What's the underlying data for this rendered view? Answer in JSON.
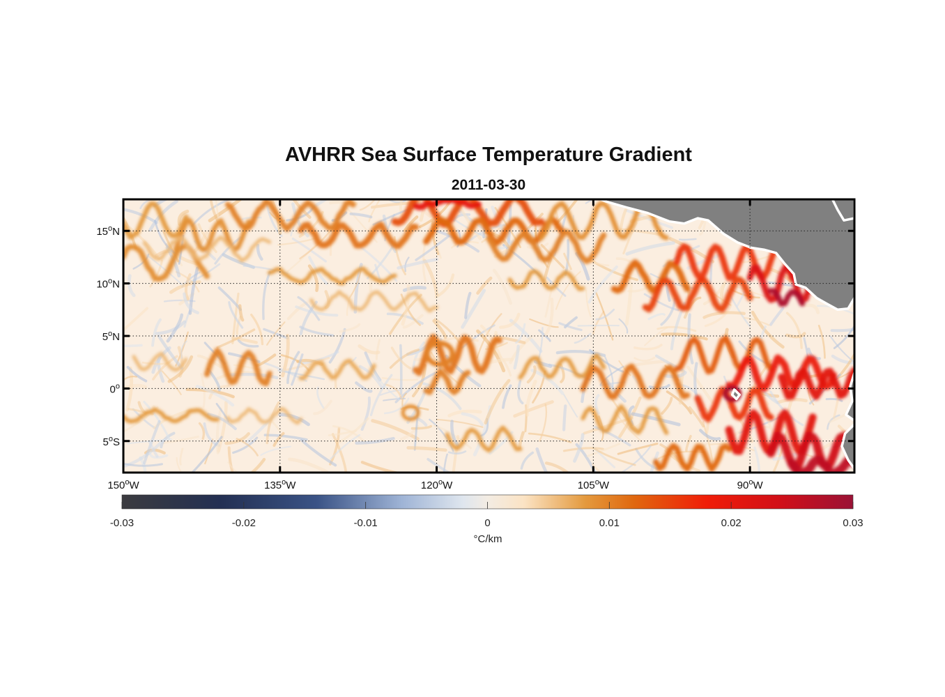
{
  "title": "AVHRR Sea Surface Temperature Gradient",
  "subtitle": "2011-03-30",
  "map": {
    "lon_range": [
      -150,
      -80
    ],
    "lat_range": [
      -8,
      18
    ],
    "lon_ticks": [
      {
        "lon": -150,
        "deg": "150",
        "hem": "W"
      },
      {
        "lon": -135,
        "deg": "135",
        "hem": "W"
      },
      {
        "lon": -120,
        "deg": "120",
        "hem": "W"
      },
      {
        "lon": -105,
        "deg": "105",
        "hem": "W"
      },
      {
        "lon": -90,
        "deg": "90",
        "hem": "W"
      }
    ],
    "lat_ticks": [
      {
        "lat": 15,
        "deg": "15",
        "hem": "N"
      },
      {
        "lat": 10,
        "deg": "10",
        "hem": "N"
      },
      {
        "lat": 5,
        "deg": "5",
        "hem": "N"
      },
      {
        "lat": 0,
        "deg": "0",
        "hem": ""
      },
      {
        "lat": -5,
        "deg": "5",
        "hem": "S"
      }
    ],
    "land_color": "#808080",
    "grid": "dotted"
  },
  "colorbar": {
    "min": -0.03,
    "max": 0.03,
    "ticks": [
      "-0.03",
      "-0.02",
      "-0.01",
      "0",
      "0.01",
      "0.02",
      "0.03"
    ],
    "unit_label": "°C/km",
    "stops": [
      {
        "v": -0.03,
        "c": "#3b3b3f"
      },
      {
        "v": -0.022,
        "c": "#232f52"
      },
      {
        "v": -0.014,
        "c": "#3a5386"
      },
      {
        "v": -0.007,
        "c": "#9fb4d6"
      },
      {
        "v": -0.002,
        "c": "#dfe6ee"
      },
      {
        "v": 0.0,
        "c": "#f3ece3"
      },
      {
        "v": 0.003,
        "c": "#fbe3c4"
      },
      {
        "v": 0.008,
        "c": "#e49a3e"
      },
      {
        "v": 0.012,
        "c": "#e0680f"
      },
      {
        "v": 0.018,
        "c": "#f01d08"
      },
      {
        "v": 0.024,
        "c": "#d10f18"
      },
      {
        "v": 0.03,
        "c": "#9a1236"
      }
    ]
  }
}
